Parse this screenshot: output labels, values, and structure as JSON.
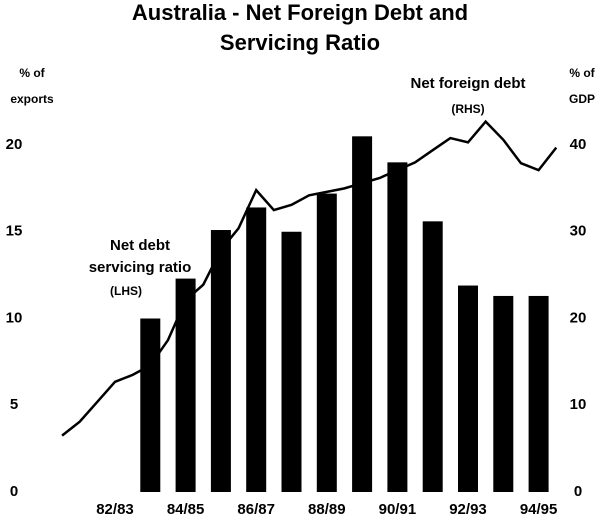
{
  "chart_data": {
    "type": "bar",
    "title": [
      "Australia - Net Foreign Debt and",
      "Servicing Ratio"
    ],
    "y_label": [
      "% of",
      "exports"
    ],
    "y2_label": [
      "% of",
      "GDP"
    ],
    "annotations": [
      {
        "lines": [
          "Net foreign debt"
        ],
        "note": "(RHS)"
      },
      {
        "lines": [
          "Net debt",
          "servicing ratio"
        ],
        "note": "(LHS)"
      }
    ],
    "categories": [
      "82/83",
      null,
      "84/85",
      null,
      "86/87",
      null,
      "88/89",
      null,
      "90/91",
      null,
      "92/93",
      null,
      "94/95"
    ],
    "series": [
      {
        "name": "Net debt servicing ratio",
        "color": "#000000",
        "values": [
          null,
          10.0,
          12.3,
          15.1,
          16.4,
          15.0,
          17.2,
          20.5,
          19.0,
          15.6,
          11.9,
          11.3,
          11.3
        ]
      },
      {
        "name": "Net foreign debt",
        "color": "#000000",
        "type": "line",
        "axis": "y2",
        "x": [
          -1.5,
          -1,
          -0.5,
          0,
          0.5,
          1,
          1.5,
          2,
          2.5,
          3,
          3.5,
          4,
          4.5,
          5,
          5.5,
          6,
          6.5,
          7,
          7.5,
          8,
          8.5,
          9,
          9.5,
          10,
          10.5,
          11,
          11.5,
          12,
          12.5
        ],
        "values": [
          6.5,
          8.1,
          10.4,
          12.7,
          13.5,
          14.6,
          17.5,
          22.1,
          23.9,
          27.9,
          30.4,
          34.8,
          32.5,
          33.1,
          34.2,
          34.6,
          35.0,
          35.6,
          36.2,
          37.1,
          38.0,
          39.4,
          40.8,
          40.3,
          42.7,
          40.6,
          37.9,
          37.1,
          39.7
        ]
      }
    ],
    "ylim": [
      0,
      20
    ],
    "yticks": [
      0,
      5,
      10,
      15,
      20
    ],
    "y2lim": [
      0,
      40
    ],
    "y2ticks": [
      0,
      10,
      20,
      30,
      40
    ],
    "grid": false
  }
}
